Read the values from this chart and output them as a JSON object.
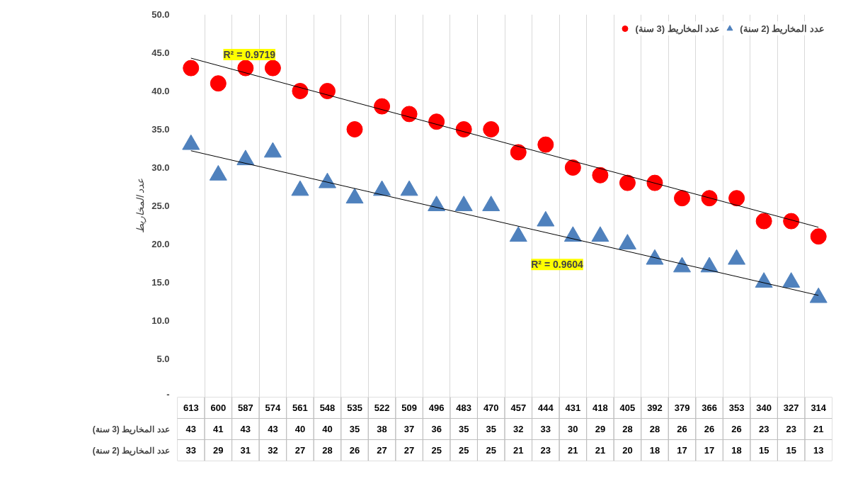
{
  "chart_data": {
    "type": "scatter",
    "ylabel": "عدد المخاريط",
    "categories": [
      "613",
      "600",
      "587",
      "574",
      "561",
      "548",
      "535",
      "522",
      "509",
      "496",
      "483",
      "470",
      "457",
      "444",
      "431",
      "418",
      "405",
      "392",
      "379",
      "366",
      "353",
      "340",
      "327",
      "314"
    ],
    "series": [
      {
        "name": "عدد المخاريط (3 سنة)",
        "color": "#ff0000",
        "marker": "circle",
        "values": [
          43,
          41,
          43,
          43,
          40,
          40,
          35,
          38,
          37,
          36,
          35,
          35,
          32,
          33,
          30,
          29,
          28,
          28,
          26,
          26,
          26,
          23,
          23,
          21
        ],
        "value_labels": [
          "43",
          "41",
          "43",
          "43",
          "40",
          "40",
          "35",
          "38",
          "37",
          "36",
          "35",
          "35",
          "32",
          "33",
          "30",
          "29",
          "28",
          "28",
          "26",
          "26",
          "26",
          "23",
          "23",
          "21"
        ]
      },
      {
        "name": "عدد المخاريط (2 سنة)",
        "color": "#4f81bd",
        "marker": "triangle",
        "values": [
          33,
          29,
          31,
          32,
          27,
          28,
          26,
          27,
          27,
          25,
          25,
          25,
          21,
          23,
          21,
          21,
          20,
          18,
          17,
          17,
          18,
          15,
          15,
          13
        ],
        "value_labels": [
          "33",
          "29",
          "31",
          "32",
          "27",
          "28",
          "26",
          "27",
          "27",
          "25",
          "25",
          "25",
          "21",
          "23",
          "21",
          "21",
          "20",
          "18",
          "17",
          "17",
          "18",
          "15",
          "15",
          "13"
        ]
      },
      {
        "type": "line",
        "color": "#000000",
        "x": [
          "613",
          "314"
        ],
        "values": [
          44.3,
          22.2
        ]
      },
      {
        "type": "line",
        "color": "#000000",
        "x": [
          "613",
          "314"
        ],
        "values": [
          32.2,
          13.3
        ]
      }
    ],
    "ylim": [
      0,
      50
    ],
    "yticks": [
      {
        "value": 0,
        "label": "-"
      },
      {
        "value": 5,
        "label": "5.0"
      },
      {
        "value": 10,
        "label": "10.0"
      },
      {
        "value": 15,
        "label": "15.0"
      },
      {
        "value": 20,
        "label": "20.0"
      },
      {
        "value": 25,
        "label": "25.0"
      },
      {
        "value": 30,
        "label": "30.0"
      },
      {
        "value": 35,
        "label": "35.0"
      },
      {
        "value": 40,
        "label": "40.0"
      },
      {
        "value": 45,
        "label": "45.0"
      },
      {
        "value": 50,
        "label": "50.0"
      }
    ],
    "annotations": [
      "R² = 0.9719",
      "R² = 0.9604"
    ],
    "grid": "x",
    "legend": "top right"
  }
}
